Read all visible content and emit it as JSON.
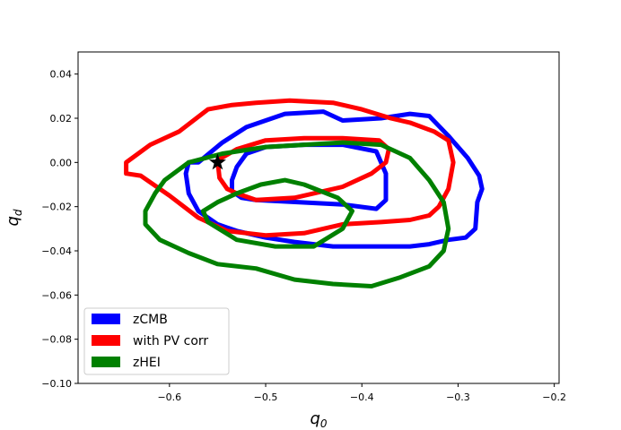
{
  "chart_data": {
    "type": "line",
    "xlabel": "q",
    "xlabel_sub": "0",
    "ylabel": "q",
    "ylabel_sub": "d",
    "xlim": [
      -0.695,
      -0.195
    ],
    "ylim": [
      -0.1,
      0.05
    ],
    "xticks": [
      -0.6,
      -0.5,
      -0.4,
      -0.3,
      -0.2
    ],
    "xtick_labels": [
      "−0.6",
      "−0.5",
      "−0.4",
      "−0.3",
      "−0.2"
    ],
    "yticks": [
      -0.1,
      -0.08,
      -0.06,
      -0.04,
      -0.02,
      0.0,
      0.02,
      0.04
    ],
    "ytick_labels": [
      "−0.10",
      "−0.08",
      "−0.06",
      "−0.04",
      "−0.02",
      "0.00",
      "0.02",
      "0.04"
    ],
    "grid": false,
    "legend_position": "lower-left",
    "marker": {
      "symbol": "star",
      "x": -0.55,
      "y": 0.0,
      "color": "#000000"
    },
    "series": [
      {
        "name": "zCMB",
        "color": "#0000ff",
        "contours": [
          [
            [
              -0.51,
              -0.017
            ],
            [
              -0.465,
              -0.018
            ],
            [
              -0.42,
              -0.019
            ],
            [
              -0.385,
              -0.021
            ],
            [
              -0.375,
              -0.017
            ],
            [
              -0.375,
              -0.005
            ],
            [
              -0.385,
              0.005
            ],
            [
              -0.42,
              0.008
            ],
            [
              -0.46,
              0.008
            ],
            [
              -0.5,
              0.007
            ],
            [
              -0.52,
              0.004
            ],
            [
              -0.53,
              -0.002
            ],
            [
              -0.535,
              -0.008
            ],
            [
              -0.535,
              -0.013
            ],
            [
              -0.525,
              -0.016
            ],
            [
              -0.51,
              -0.017
            ]
          ],
          [
            [
              -0.57,
              0.0
            ],
            [
              -0.545,
              0.009
            ],
            [
              -0.52,
              0.016
            ],
            [
              -0.48,
              0.022
            ],
            [
              -0.44,
              0.023
            ],
            [
              -0.42,
              0.019
            ],
            [
              -0.38,
              0.02
            ],
            [
              -0.35,
              0.022
            ],
            [
              -0.33,
              0.021
            ],
            [
              -0.31,
              0.012
            ],
            [
              -0.29,
              0.002
            ],
            [
              -0.278,
              -0.006
            ],
            [
              -0.275,
              -0.012
            ],
            [
              -0.28,
              -0.018
            ],
            [
              -0.282,
              -0.03
            ],
            [
              -0.292,
              -0.034
            ],
            [
              -0.31,
              -0.035
            ],
            [
              -0.33,
              -0.037
            ],
            [
              -0.35,
              -0.038
            ],
            [
              -0.4,
              -0.038
            ],
            [
              -0.43,
              -0.038
            ],
            [
              -0.47,
              -0.036
            ],
            [
              -0.5,
              -0.034
            ],
            [
              -0.53,
              -0.031
            ],
            [
              -0.55,
              -0.028
            ],
            [
              -0.57,
              -0.022
            ],
            [
              -0.58,
              -0.014
            ],
            [
              -0.583,
              -0.005
            ],
            [
              -0.58,
              0.0
            ],
            [
              -0.57,
              0.0
            ]
          ]
        ]
      },
      {
        "name": "with PV corr",
        "color": "#ff0000",
        "contours": [
          [
            [
              -0.53,
              -0.014
            ],
            [
              -0.51,
              -0.017
            ],
            [
              -0.47,
              -0.016
            ],
            [
              -0.42,
              -0.011
            ],
            [
              -0.39,
              -0.005
            ],
            [
              -0.375,
              0.0
            ],
            [
              -0.372,
              0.006
            ],
            [
              -0.382,
              0.01
            ],
            [
              -0.42,
              0.011
            ],
            [
              -0.46,
              0.011
            ],
            [
              -0.5,
              0.01
            ],
            [
              -0.53,
              0.006
            ],
            [
              -0.55,
              0.001
            ],
            [
              -0.548,
              -0.007
            ],
            [
              -0.54,
              -0.012
            ],
            [
              -0.53,
              -0.014
            ]
          ],
          [
            [
              -0.645,
              0.0
            ],
            [
              -0.62,
              0.008
            ],
            [
              -0.59,
              0.014
            ],
            [
              -0.56,
              0.024
            ],
            [
              -0.535,
              0.026
            ],
            [
              -0.51,
              0.027
            ],
            [
              -0.475,
              0.028
            ],
            [
              -0.43,
              0.027
            ],
            [
              -0.4,
              0.024
            ],
            [
              -0.37,
              0.02
            ],
            [
              -0.35,
              0.018
            ],
            [
              -0.325,
              0.014
            ],
            [
              -0.31,
              0.01
            ],
            [
              -0.305,
              0.0
            ],
            [
              -0.31,
              -0.012
            ],
            [
              -0.32,
              -0.02
            ],
            [
              -0.33,
              -0.024
            ],
            [
              -0.35,
              -0.026
            ],
            [
              -0.38,
              -0.027
            ],
            [
              -0.42,
              -0.028
            ],
            [
              -0.46,
              -0.032
            ],
            [
              -0.5,
              -0.033
            ],
            [
              -0.54,
              -0.031
            ],
            [
              -0.57,
              -0.025
            ],
            [
              -0.6,
              -0.015
            ],
            [
              -0.63,
              -0.006
            ],
            [
              -0.645,
              -0.005
            ],
            [
              -0.645,
              0.0
            ]
          ]
        ]
      },
      {
        "name": "zHEI",
        "color": "#008000",
        "contours": [
          [
            [
              -0.56,
              -0.027
            ],
            [
              -0.53,
              -0.035
            ],
            [
              -0.49,
              -0.038
            ],
            [
              -0.45,
              -0.038
            ],
            [
              -0.42,
              -0.03
            ],
            [
              -0.41,
              -0.022
            ],
            [
              -0.425,
              -0.016
            ],
            [
              -0.46,
              -0.01
            ],
            [
              -0.48,
              -0.008
            ],
            [
              -0.505,
              -0.01
            ],
            [
              -0.53,
              -0.014
            ],
            [
              -0.55,
              -0.018
            ],
            [
              -0.565,
              -0.022
            ],
            [
              -0.56,
              -0.027
            ]
          ],
          [
            [
              -0.605,
              -0.008
            ],
            [
              -0.58,
              0.0
            ],
            [
              -0.545,
              0.004
            ],
            [
              -0.5,
              0.007
            ],
            [
              -0.46,
              0.008
            ],
            [
              -0.42,
              0.009
            ],
            [
              -0.38,
              0.008
            ],
            [
              -0.35,
              0.002
            ],
            [
              -0.33,
              -0.008
            ],
            [
              -0.315,
              -0.018
            ],
            [
              -0.31,
              -0.03
            ],
            [
              -0.315,
              -0.04
            ],
            [
              -0.33,
              -0.047
            ],
            [
              -0.36,
              -0.052
            ],
            [
              -0.39,
              -0.056
            ],
            [
              -0.43,
              -0.055
            ],
            [
              -0.47,
              -0.053
            ],
            [
              -0.51,
              -0.048
            ],
            [
              -0.55,
              -0.046
            ],
            [
              -0.58,
              -0.041
            ],
            [
              -0.61,
              -0.035
            ],
            [
              -0.625,
              -0.028
            ],
            [
              -0.625,
              -0.022
            ],
            [
              -0.615,
              -0.014
            ],
            [
              -0.605,
              -0.008
            ]
          ]
        ]
      }
    ]
  }
}
